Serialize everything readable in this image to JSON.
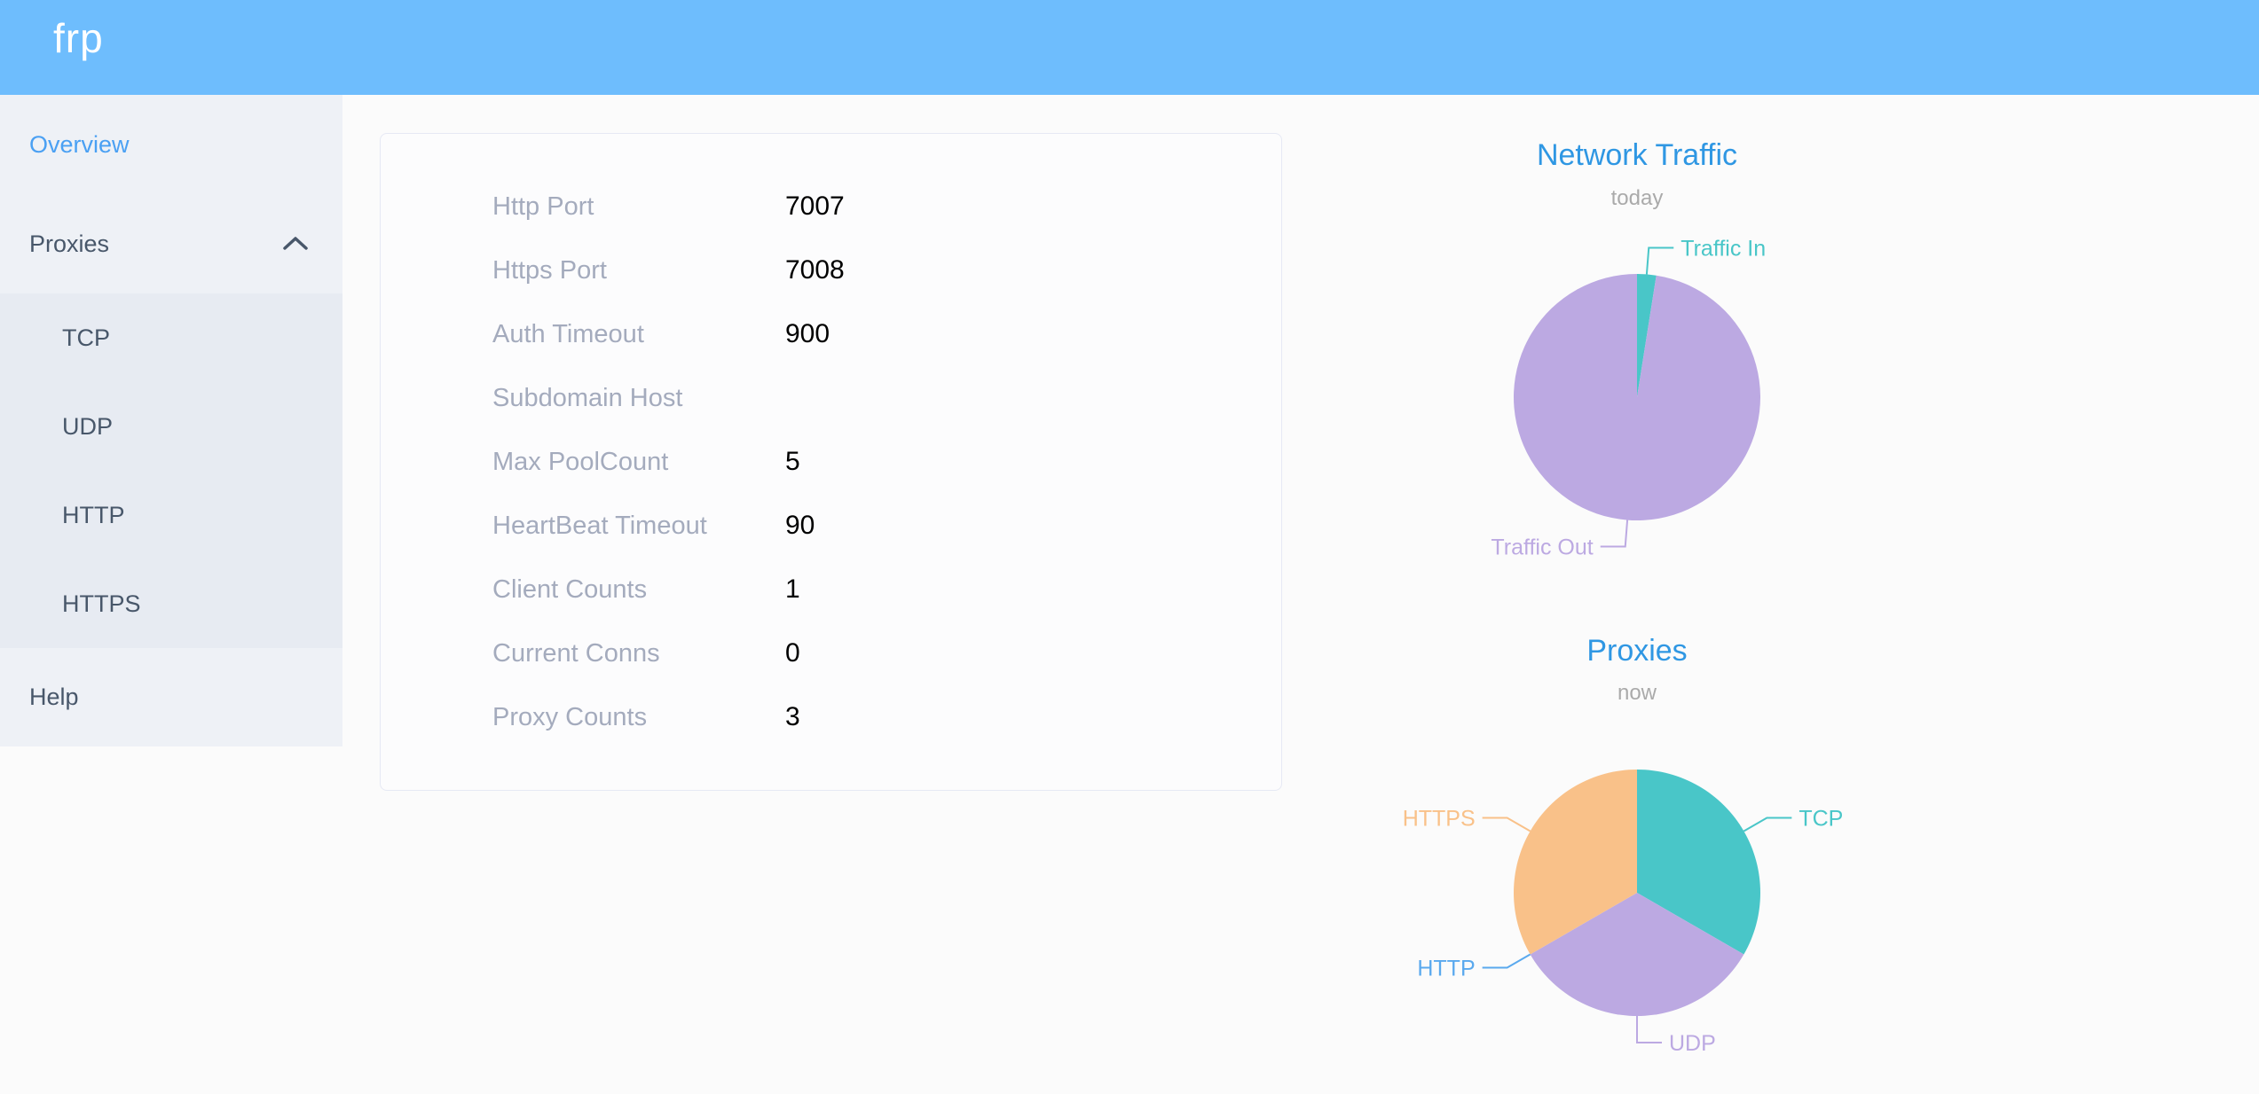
{
  "app": {
    "name": "frp",
    "header_bg": "#6ebdfd",
    "page_bg": "#fbfbfb",
    "title_blue": "#2f97e3"
  },
  "sidebar": {
    "bg": "#eef1f6",
    "submenu_bg": "#e7ebf2",
    "text_color": "#48576a",
    "active_color": "#4aa0f3",
    "items": [
      {
        "label": "Overview",
        "active": true
      },
      {
        "label": "Proxies",
        "expanded": true,
        "children": [
          {
            "label": "TCP"
          },
          {
            "label": "UDP"
          },
          {
            "label": "HTTP"
          },
          {
            "label": "HTTPS"
          }
        ]
      },
      {
        "label": "Help"
      }
    ]
  },
  "server_info": {
    "rows": [
      {
        "label": "Http Port",
        "value": "7007"
      },
      {
        "label": "Https Port",
        "value": "7008"
      },
      {
        "label": "Auth Timeout",
        "value": "900"
      },
      {
        "label": "Subdomain Host",
        "value": ""
      },
      {
        "label": "Max PoolCount",
        "value": "5"
      },
      {
        "label": "HeartBeat Timeout",
        "value": "90"
      },
      {
        "label": "Client Counts",
        "value": "1"
      },
      {
        "label": "Current Conns",
        "value": "0"
      },
      {
        "label": "Proxy Counts",
        "value": "3"
      }
    ],
    "label_color": "#a4abbd",
    "value_color": "#000000"
  },
  "chart_data": [
    {
      "type": "pie",
      "title": "Network Traffic",
      "subtitle": "today",
      "categories": [
        "Traffic In",
        "Traffic Out"
      ],
      "values": [
        2.5,
        97.5
      ],
      "values_note": "estimated percent from slice angles; no numeric labels shown",
      "colors": [
        "#49c6c8",
        "#bca9e2"
      ],
      "title_color": "#2f97e3",
      "subtitle_color": "#aaaaaa",
      "labels": "outside-with-leader-lines",
      "legend": "none"
    },
    {
      "type": "pie",
      "title": "Proxies",
      "subtitle": "now",
      "categories": [
        "TCP",
        "UDP",
        "HTTP",
        "HTTPS"
      ],
      "values": [
        1,
        1,
        0,
        1
      ],
      "colors": [
        "#49c6c8",
        "#bca9e2",
        "#5aa9ee",
        "#f9c189"
      ],
      "title_color": "#2f97e3",
      "subtitle_color": "#aaaaaa",
      "labels": "outside-with-leader-lines",
      "legend": "none"
    }
  ]
}
